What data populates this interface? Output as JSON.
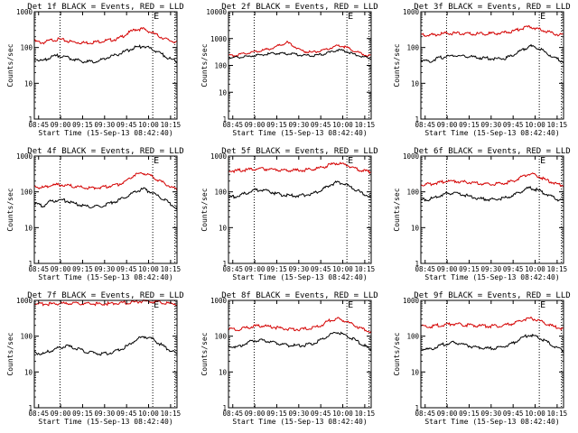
{
  "chart_data": [
    {
      "type": "line",
      "title": "Det 1f BLACK = Events, RED = LLD",
      "xlabel": "Start Time (15-Sep-13 08:42:40)",
      "ylabel": "Counts/sec",
      "yscale": "log",
      "ylim": [
        1,
        1000
      ],
      "x_ticks": [
        "08:45",
        "09:00",
        "09:15",
        "09:30",
        "09:45",
        "10:00",
        "10:15"
      ],
      "y_ticks": [
        "1",
        "10",
        "100",
        "1000"
      ],
      "marker_label": "E",
      "x": [
        0.0,
        0.06,
        0.12,
        0.18,
        0.24,
        0.3,
        0.36,
        0.42,
        0.48,
        0.54,
        0.6,
        0.66,
        0.72,
        0.78,
        0.84,
        0.9,
        0.96,
        1.0
      ],
      "series": [
        {
          "name": "RED = LLD",
          "color": "#d40000",
          "values": [
            150,
            135,
            160,
            170,
            150,
            140,
            135,
            140,
            150,
            160,
            175,
            240,
            320,
            330,
            260,
            200,
            160,
            140
          ]
        },
        {
          "name": "BLACK = Events",
          "color": "#000000",
          "values": [
            50,
            42,
            55,
            60,
            52,
            45,
            40,
            40,
            45,
            55,
            65,
            80,
            100,
            110,
            90,
            70,
            50,
            40
          ]
        }
      ]
    },
    {
      "type": "line",
      "title": "Det 2f BLACK = Events, RED = LLD",
      "xlabel": "Start Time (15-Sep-13 08:42:40)",
      "ylabel": "Counts/sec",
      "yscale": "log",
      "ylim": [
        1,
        10000
      ],
      "x_ticks": [
        "08:45",
        "09:00",
        "09:15",
        "09:30",
        "09:45",
        "10:00",
        "10:15"
      ],
      "y_ticks": [
        "1",
        "10",
        "100",
        "1000",
        "10000"
      ],
      "marker_label": "E",
      "x": [
        0.0,
        0.06,
        0.12,
        0.18,
        0.24,
        0.3,
        0.36,
        0.42,
        0.48,
        0.54,
        0.6,
        0.66,
        0.72,
        0.78,
        0.84,
        0.9,
        0.96,
        1.0
      ],
      "series": [
        {
          "name": "RED = LLD",
          "color": "#d40000",
          "values": [
            230,
            240,
            280,
            320,
            360,
            420,
            560,
            720,
            480,
            330,
            310,
            340,
            420,
            560,
            480,
            340,
            260,
            220
          ]
        },
        {
          "name": "BLACK = Events",
          "color": "#000000",
          "values": [
            190,
            200,
            210,
            230,
            250,
            270,
            280,
            270,
            260,
            240,
            230,
            250,
            300,
            380,
            330,
            260,
            210,
            180
          ]
        }
      ]
    },
    {
      "type": "line",
      "title": "Det 3f BLACK = Events, RED = LLD",
      "xlabel": "Start Time (15-Sep-13 08:42:40)",
      "ylabel": "Counts/sec",
      "yscale": "log",
      "ylim": [
        1,
        1000
      ],
      "x_ticks": [
        "08:45",
        "09:00",
        "09:15",
        "09:30",
        "09:45",
        "10:00",
        "10:15"
      ],
      "y_ticks": [
        "1",
        "10",
        "100",
        "1000"
      ],
      "marker_label": "E",
      "x": [
        0.0,
        0.06,
        0.12,
        0.18,
        0.24,
        0.3,
        0.36,
        0.42,
        0.48,
        0.54,
        0.6,
        0.66,
        0.72,
        0.78,
        0.84,
        0.9,
        0.96,
        1.0
      ],
      "series": [
        {
          "name": "RED = LLD",
          "color": "#d40000",
          "values": [
            230,
            220,
            235,
            245,
            250,
            245,
            240,
            240,
            245,
            250,
            260,
            290,
            340,
            380,
            330,
            280,
            240,
            220
          ]
        },
        {
          "name": "BLACK = Events",
          "color": "#000000",
          "values": [
            45,
            40,
            50,
            55,
            60,
            58,
            55,
            52,
            50,
            48,
            50,
            60,
            85,
            110,
            95,
            70,
            50,
            40
          ]
        }
      ]
    },
    {
      "type": "line",
      "title": "Det 4f BLACK = Events, RED = LLD",
      "xlabel": "Start Time (15-Sep-13 08:42:40)",
      "ylabel": "Counts/sec",
      "yscale": "log",
      "ylim": [
        1,
        1000
      ],
      "x_ticks": [
        "08:45",
        "09:00",
        "09:15",
        "09:30",
        "09:45",
        "10:00",
        "10:15"
      ],
      "y_ticks": [
        "1",
        "10",
        "100",
        "1000"
      ],
      "marker_label": "E",
      "x": [
        0.0,
        0.06,
        0.12,
        0.18,
        0.24,
        0.3,
        0.36,
        0.42,
        0.48,
        0.54,
        0.6,
        0.66,
        0.72,
        0.78,
        0.84,
        0.9,
        0.96,
        1.0
      ],
      "series": [
        {
          "name": "RED = LLD",
          "color": "#d40000",
          "values": [
            140,
            130,
            150,
            160,
            150,
            140,
            130,
            130,
            135,
            145,
            160,
            210,
            300,
            330,
            270,
            200,
            150,
            110
          ]
        },
        {
          "name": "BLACK = Events",
          "color": "#000000",
          "values": [
            50,
            40,
            55,
            60,
            55,
            45,
            40,
            38,
            40,
            48,
            58,
            75,
            100,
            120,
            95,
            70,
            50,
            35
          ]
        }
      ]
    },
    {
      "type": "line",
      "title": "Det 5f BLACK = Events, RED = LLD",
      "xlabel": "Start Time (15-Sep-13 08:42:40)",
      "ylabel": "Counts/sec",
      "yscale": "log",
      "ylim": [
        1,
        1000
      ],
      "x_ticks": [
        "08:45",
        "09:00",
        "09:15",
        "09:30",
        "09:45",
        "10:00",
        "10:15"
      ],
      "y_ticks": [
        "1",
        "10",
        "100",
        "1000"
      ],
      "marker_label": "E",
      "x": [
        0.0,
        0.06,
        0.12,
        0.18,
        0.24,
        0.3,
        0.36,
        0.42,
        0.48,
        0.54,
        0.6,
        0.66,
        0.72,
        0.78,
        0.84,
        0.9,
        0.96,
        1.0
      ],
      "series": [
        {
          "name": "RED = LLD",
          "color": "#d40000",
          "values": [
            380,
            390,
            410,
            430,
            440,
            430,
            410,
            400,
            400,
            410,
            430,
            470,
            560,
            640,
            560,
            460,
            390,
            360
          ]
        },
        {
          "name": "BLACK = Events",
          "color": "#000000",
          "values": [
            70,
            75,
            90,
            110,
            115,
            100,
            85,
            80,
            78,
            80,
            90,
            110,
            150,
            190,
            160,
            120,
            90,
            70
          ]
        }
      ]
    },
    {
      "type": "line",
      "title": "Det 6f BLACK = Events, RED = LLD",
      "xlabel": "Start Time (15-Sep-13 08:42:40)",
      "ylabel": "Counts/sec",
      "yscale": "log",
      "ylim": [
        1,
        1000
      ],
      "x_ticks": [
        "08:45",
        "09:00",
        "09:15",
        "09:30",
        "09:45",
        "10:00",
        "10:15"
      ],
      "y_ticks": [
        "1",
        "10",
        "100",
        "1000"
      ],
      "marker_label": "E",
      "x": [
        0.0,
        0.06,
        0.12,
        0.18,
        0.24,
        0.3,
        0.36,
        0.42,
        0.48,
        0.54,
        0.6,
        0.66,
        0.72,
        0.78,
        0.84,
        0.9,
        0.96,
        1.0
      ],
      "series": [
        {
          "name": "RED = LLD",
          "color": "#d40000",
          "values": [
            160,
            165,
            180,
            195,
            200,
            190,
            180,
            170,
            165,
            165,
            175,
            200,
            260,
            320,
            270,
            210,
            170,
            150
          ]
        },
        {
          "name": "BLACK = Events",
          "color": "#000000",
          "values": [
            60,
            62,
            75,
            90,
            95,
            85,
            72,
            65,
            62,
            62,
            68,
            80,
            105,
            130,
            110,
            85,
            65,
            55
          ]
        }
      ]
    },
    {
      "type": "line",
      "title": "Det 7f BLACK = Events, RED = LLD",
      "xlabel": "Start Time (15-Sep-13 08:42:40)",
      "ylabel": "Counts/sec",
      "yscale": "log",
      "ylim": [
        1,
        1000
      ],
      "x_ticks": [
        "08:45",
        "09:00",
        "09:15",
        "09:30",
        "09:45",
        "10:00",
        "10:15"
      ],
      "y_ticks": [
        "1",
        "10",
        "100",
        "1000"
      ],
      "marker_label": "E",
      "x": [
        0.0,
        0.06,
        0.12,
        0.18,
        0.24,
        0.3,
        0.36,
        0.42,
        0.48,
        0.54,
        0.6,
        0.66,
        0.72,
        0.78,
        0.84,
        0.9,
        0.96,
        1.0
      ],
      "series": [
        {
          "name": "RED = LLD",
          "color": "#d40000",
          "values": [
            800,
            790,
            800,
            810,
            820,
            820,
            810,
            800,
            800,
            810,
            830,
            860,
            900,
            950,
            930,
            880,
            830,
            790
          ]
        },
        {
          "name": "BLACK = Events",
          "color": "#000000",
          "values": [
            35,
            32,
            40,
            48,
            52,
            45,
            38,
            34,
            32,
            34,
            40,
            52,
            75,
            100,
            85,
            60,
            42,
            32
          ]
        }
      ]
    },
    {
      "type": "line",
      "title": "Det 8f BLACK = Events, RED = LLD",
      "xlabel": "Start Time (15-Sep-13 08:42:40)",
      "ylabel": "Counts/sec",
      "yscale": "log",
      "ylim": [
        1,
        1000
      ],
      "x_ticks": [
        "08:45",
        "09:00",
        "09:15",
        "09:30",
        "09:45",
        "10:00",
        "10:15"
      ],
      "y_ticks": [
        "1",
        "10",
        "100",
        "1000"
      ],
      "marker_label": "E",
      "x": [
        0.0,
        0.06,
        0.12,
        0.18,
        0.24,
        0.3,
        0.36,
        0.42,
        0.48,
        0.54,
        0.6,
        0.66,
        0.72,
        0.78,
        0.84,
        0.9,
        0.96,
        1.0
      ],
      "series": [
        {
          "name": "RED = LLD",
          "color": "#d40000",
          "values": [
            160,
            150,
            170,
            190,
            195,
            185,
            170,
            160,
            155,
            158,
            170,
            200,
            270,
            310,
            260,
            200,
            160,
            130
          ]
        },
        {
          "name": "BLACK = Events",
          "color": "#000000",
          "values": [
            55,
            50,
            62,
            75,
            78,
            70,
            62,
            56,
            54,
            55,
            62,
            78,
            110,
            130,
            105,
            80,
            58,
            40
          ]
        }
      ]
    },
    {
      "type": "line",
      "title": "Det 9f BLACK = Events, RED = LLD",
      "xlabel": "Start Time (15-Sep-13 08:42:40)",
      "ylabel": "Counts/sec",
      "yscale": "log",
      "ylim": [
        1,
        1000
      ],
      "x_ticks": [
        "08:45",
        "09:00",
        "09:15",
        "09:30",
        "09:45",
        "10:00",
        "10:15"
      ],
      "y_ticks": [
        "1",
        "10",
        "100",
        "1000"
      ],
      "marker_label": "E",
      "x": [
        0.0,
        0.06,
        0.12,
        0.18,
        0.24,
        0.3,
        0.36,
        0.42,
        0.48,
        0.54,
        0.6,
        0.66,
        0.72,
        0.78,
        0.84,
        0.9,
        0.96,
        1.0
      ],
      "series": [
        {
          "name": "RED = LLD",
          "color": "#d40000",
          "values": [
            190,
            180,
            200,
            215,
            220,
            210,
            200,
            195,
            190,
            192,
            200,
            225,
            280,
            320,
            280,
            220,
            180,
            160
          ]
        },
        {
          "name": "BLACK = Events",
          "color": "#000000",
          "values": [
            45,
            42,
            52,
            62,
            66,
            60,
            52,
            48,
            45,
            46,
            52,
            65,
            90,
            110,
            92,
            70,
            50,
            38
          ]
        }
      ]
    }
  ]
}
